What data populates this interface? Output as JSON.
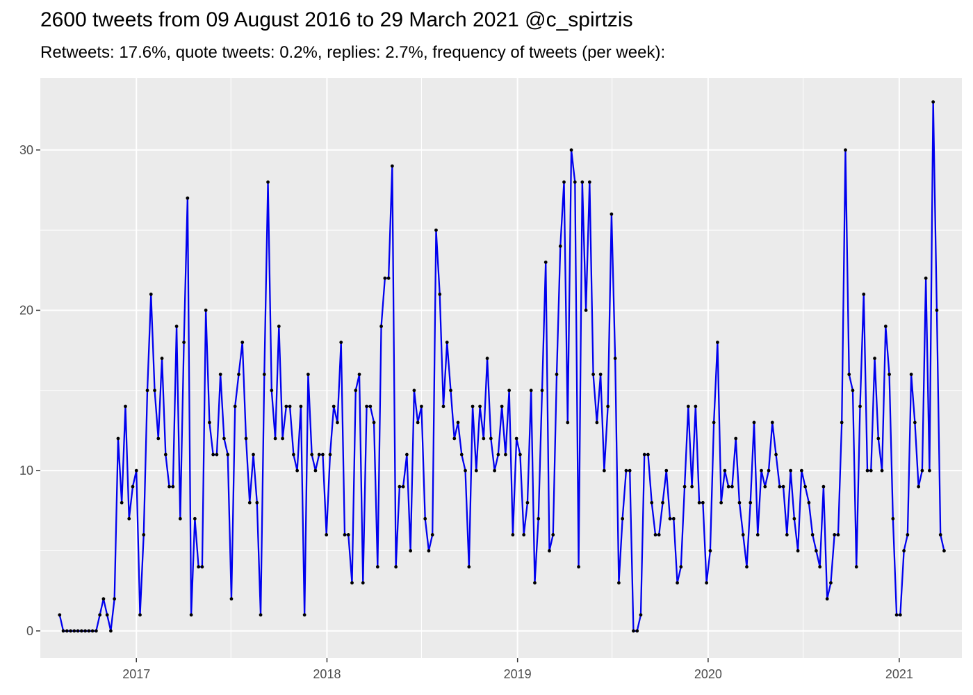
{
  "title": "2600 tweets from 09 August 2016 to 29 March 2021 @c_spirtzis",
  "subtitle": "Retweets: 17.6%, quote tweets: 0.2%, replies: 2.7%, frequency of tweets (per week):",
  "colors": {
    "panel": "#ebebeb",
    "grid": "#ffffff",
    "line": "#0000ee",
    "point": "#000000",
    "tick_text": "#4d4d4d"
  },
  "chart_data": {
    "type": "line",
    "title": "2600 tweets from 09 August 2016 to 29 March 2021 @c_spirtzis",
    "subtitle": "Retweets: 17.6%, quote tweets: 0.2%, replies: 2.7%, frequency of tweets (per week):",
    "xlabel": "",
    "ylabel": "",
    "x_start": "2016-08-07",
    "x_interval": "week",
    "xlim": [
      "2016-07-01",
      "2021-05-01"
    ],
    "ylim": [
      -1.7,
      34.5
    ],
    "x_ticks": [
      "2017",
      "2018",
      "2019",
      "2020",
      "2021"
    ],
    "y_ticks": [
      0,
      10,
      20,
      30
    ],
    "grid": true,
    "legend": "none",
    "values": [
      1,
      0,
      0,
      0,
      0,
      0,
      0,
      0,
      0,
      0,
      0,
      1,
      2,
      1,
      0,
      2,
      12,
      8,
      14,
      7,
      9,
      10,
      1,
      6,
      15,
      21,
      15,
      12,
      17,
      11,
      9,
      9,
      19,
      7,
      18,
      27,
      1,
      7,
      4,
      4,
      20,
      13,
      11,
      11,
      16,
      12,
      11,
      2,
      14,
      16,
      18,
      12,
      8,
      11,
      8,
      1,
      16,
      28,
      15,
      12,
      19,
      12,
      14,
      14,
      11,
      10,
      14,
      1,
      16,
      11,
      10,
      11,
      11,
      6,
      11,
      14,
      13,
      18,
      6,
      6,
      3,
      15,
      16,
      3,
      14,
      14,
      13,
      4,
      19,
      22,
      22,
      29,
      4,
      9,
      9,
      11,
      5,
      15,
      13,
      14,
      7,
      5,
      6,
      25,
      21,
      14,
      18,
      15,
      12,
      13,
      11,
      10,
      4,
      14,
      10,
      14,
      12,
      17,
      12,
      10,
      11,
      14,
      11,
      15,
      6,
      12,
      11,
      6,
      8,
      15,
      3,
      7,
      15,
      23,
      5,
      6,
      16,
      24,
      28,
      13,
      30,
      28,
      4,
      28,
      20,
      28,
      16,
      13,
      16,
      10,
      14,
      26,
      17,
      3,
      7,
      10,
      10,
      0,
      0,
      1,
      11,
      11,
      8,
      6,
      6,
      8,
      10,
      7,
      7,
      3,
      4,
      9,
      14,
      9,
      14,
      8,
      8,
      3,
      5,
      13,
      18,
      8,
      10,
      9,
      9,
      12,
      8,
      6,
      4,
      8,
      13,
      6,
      10,
      9,
      10,
      13,
      11,
      9,
      9,
      6,
      10,
      7,
      5,
      10,
      9,
      8,
      6,
      5,
      4,
      9,
      2,
      3,
      6,
      6,
      13,
      30,
      16,
      15,
      4,
      14,
      21,
      10,
      10,
      17,
      12,
      10,
      19,
      16,
      7,
      1,
      1,
      5,
      6,
      16,
      13,
      9,
      10,
      22,
      10,
      33,
      20,
      6,
      5
    ]
  }
}
